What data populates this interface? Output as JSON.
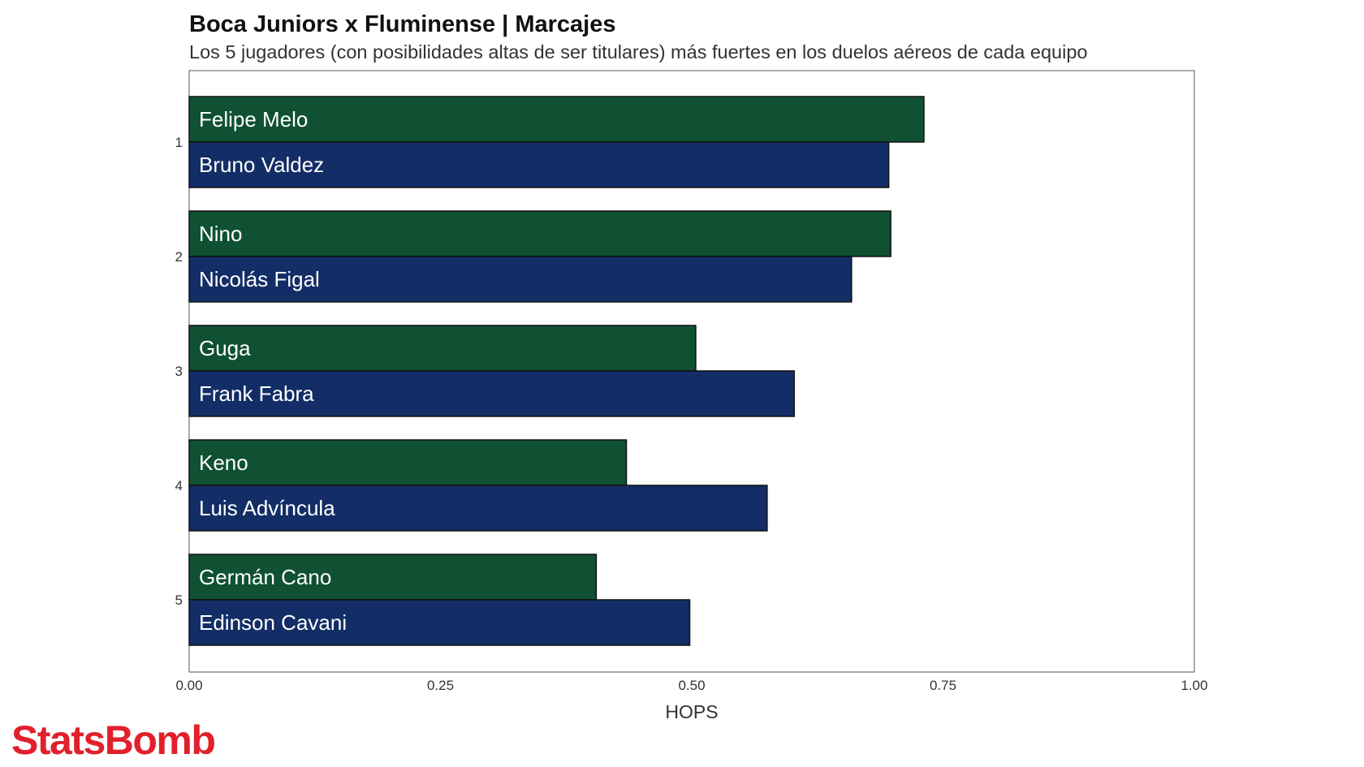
{
  "title": "Boca Juniors x Fluminense | Marcajes",
  "subtitle": "Los 5 jugadores (con posibilidades altas de ser titulares) más fuertes en los duelos aéreos de cada equipo",
  "brand": "StatsBomb",
  "colors": {
    "fluminense": "#0f5132",
    "boca": "#132e66",
    "bar_stroke": "#111111",
    "frame": "#555555",
    "brand": "#e2202b"
  },
  "chart_data": {
    "type": "bar",
    "orientation": "horizontal",
    "xlabel": "HOPS",
    "xlim": [
      0,
      1
    ],
    "xticks": [
      0,
      0.25,
      0.5,
      0.75,
      1
    ],
    "xtick_labels": [
      "0.00",
      "0.25",
      "0.50",
      "0.75",
      "1.00"
    ],
    "categories": [
      "1",
      "2",
      "3",
      "4",
      "5"
    ],
    "grid": false,
    "legend": "none",
    "series": [
      {
        "color": "#0f5132",
        "players": [
          "Felipe Melo",
          "Nino",
          "Guga",
          "Keno",
          "Germán Cano"
        ],
        "values": [
          0.731,
          0.698,
          0.504,
          0.435,
          0.405
        ]
      },
      {
        "color": "#132e66",
        "players": [
          "Bruno Valdez",
          "Nicolás Figal",
          "Frank Fabra",
          "Luis Advíncula",
          "Edinson Cavani"
        ],
        "values": [
          0.696,
          0.659,
          0.602,
          0.575,
          0.498
        ]
      }
    ]
  }
}
